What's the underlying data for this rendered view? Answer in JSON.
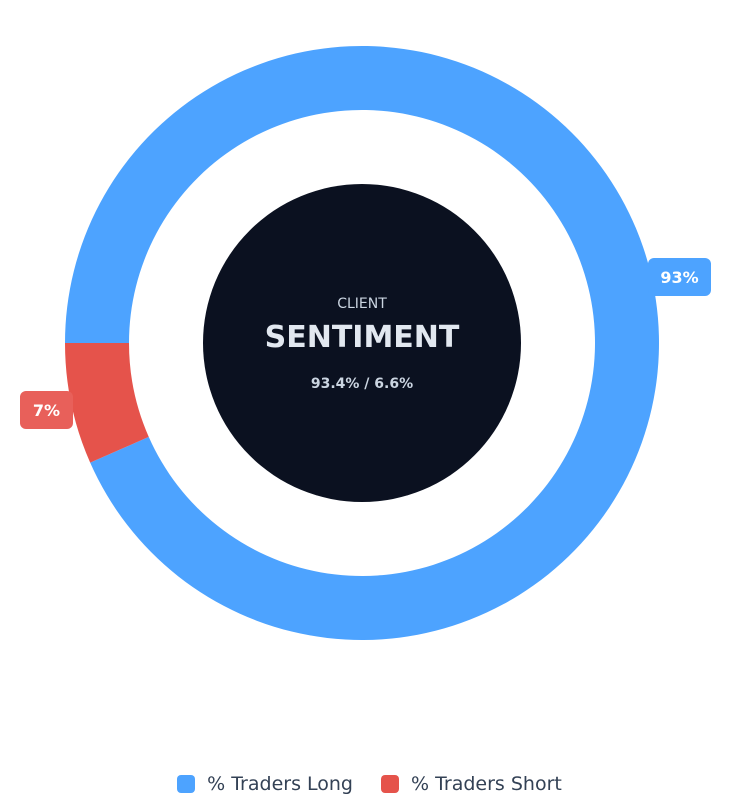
{
  "chart_data": {
    "type": "pie",
    "donut": true,
    "series": [
      {
        "name": "% Traders Long",
        "value": 93.4,
        "label": "93%",
        "color": "#4da3ff"
      },
      {
        "name": "% Traders Short",
        "value": 6.6,
        "label": "7%",
        "color": "#e5534b"
      }
    ],
    "center": {
      "small": "CLIENT",
      "title": "SENTIMENT",
      "ratio": "93.4% / 6.6%",
      "background": "#0b1120"
    },
    "legend": "bottom"
  }
}
